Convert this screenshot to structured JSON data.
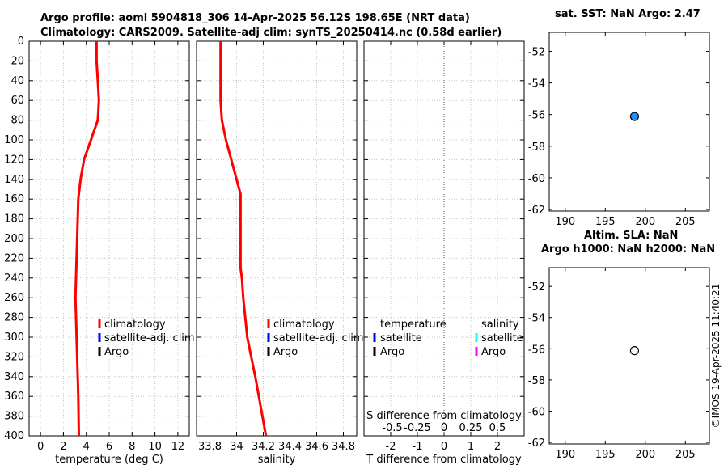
{
  "titles": {
    "main_line1": "Argo profile: aoml 5904818_306 14-Apr-2025 56.12S 198.65E (NRT data)",
    "main_line2": "Climatology: CARS2009. Satellite-adj clim: synTS_20250414.nc (0.58d earlier)",
    "map1": "sat. SST: NaN Argo: 2.47",
    "map2_line1": "Altim. SLA: NaN",
    "map2_line2": "Argo h1000: NaN h2000: NaN"
  },
  "stamp": "©IMOS 19-Apr-2025 11:40:21",
  "colors": {
    "climatology": "#ff0000",
    "satellite_adj": "#0000ff",
    "argo": "#000000",
    "s_satellite": "#00ffff",
    "s_argo": "#ff00ff",
    "marker_fill": "#1e90ff"
  },
  "chart_data": [
    {
      "type": "line",
      "id": "temperature",
      "xlabel": "temperature (deg C)",
      "ylabel": "",
      "xlim": [
        -1,
        13
      ],
      "ylim": [
        400,
        0
      ],
      "x_ticks": [
        "0",
        "2",
        "4",
        "6",
        "8",
        "10",
        "12"
      ],
      "y_ticks": [
        "0",
        "20",
        "40",
        "60",
        "80",
        "100",
        "120",
        "140",
        "160",
        "180",
        "200",
        "220",
        "240",
        "260",
        "280",
        "300",
        "320",
        "340",
        "360",
        "380",
        "400"
      ],
      "grid": true,
      "legend": [
        "climatology",
        "satellite-adj. clim",
        "Argo"
      ],
      "series": [
        {
          "name": "climatology",
          "x": [
            4.9,
            4.9,
            5.0,
            5.1,
            5.0,
            4.4,
            3.8,
            3.5,
            3.3,
            3.2,
            3.1,
            3.05,
            3.1,
            3.15,
            3.2,
            3.3,
            3.35
          ],
          "depth": [
            0,
            20,
            40,
            60,
            80,
            100,
            120,
            140,
            160,
            200,
            240,
            260,
            280,
            300,
            320,
            360,
            400
          ]
        }
      ]
    },
    {
      "type": "line",
      "id": "salinity",
      "xlabel": "salinity",
      "xlim": [
        33.7,
        34.9
      ],
      "ylim": [
        400,
        0
      ],
      "x_ticks": [
        "33.8",
        "34",
        "34.2",
        "34.4",
        "34.6",
        "34.8"
      ],
      "grid": true,
      "legend": [
        "climatology",
        "satellite-adj. clim",
        "Argo"
      ],
      "series": [
        {
          "name": "climatology",
          "x": [
            33.88,
            33.88,
            33.88,
            33.88,
            33.89,
            33.92,
            33.96,
            34.0,
            34.03,
            34.03,
            34.03,
            34.04,
            34.05,
            34.08,
            34.11,
            34.14,
            34.18,
            34.22
          ],
          "depth": [
            0,
            20,
            40,
            60,
            80,
            100,
            120,
            140,
            155,
            200,
            230,
            240,
            260,
            300,
            320,
            340,
            370,
            400
          ]
        }
      ]
    },
    {
      "type": "line",
      "id": "difference",
      "xlabel": "T difference from climatology",
      "x2label": "S difference from climatology",
      "xlim": [
        -3,
        3
      ],
      "ylim": [
        400,
        0
      ],
      "x_ticks": [
        "-2",
        "-1",
        "0",
        "1",
        "2"
      ],
      "x2_ticks": [
        "-0.5",
        "-0.25",
        "0",
        "0.25",
        "0.5"
      ],
      "grid": true,
      "legend_t_title": "temperature",
      "legend_s_title": "salinity",
      "legend_t": [
        "satellite",
        "Argo"
      ],
      "legend_s": [
        "satellite",
        "Argo"
      ],
      "series": []
    },
    {
      "type": "scatter",
      "id": "map_sst",
      "xlim": [
        188,
        208
      ],
      "ylim": [
        -62.1,
        -50.8
      ],
      "x_ticks": [
        "190",
        "195",
        "200",
        "205"
      ],
      "y_ticks": [
        "-52",
        "-54",
        "-56",
        "-58",
        "-60",
        "-62"
      ],
      "points": [
        {
          "x": 198.65,
          "y": -56.12,
          "filled": true
        }
      ]
    },
    {
      "type": "scatter",
      "id": "map_sla",
      "xlim": [
        188,
        208
      ],
      "ylim": [
        -62.1,
        -50.8
      ],
      "x_ticks": [
        "190",
        "195",
        "200",
        "205"
      ],
      "y_ticks": [
        "-52",
        "-54",
        "-56",
        "-58",
        "-60",
        "-62"
      ],
      "points": [
        {
          "x": 198.65,
          "y": -56.12,
          "filled": false
        }
      ]
    }
  ]
}
